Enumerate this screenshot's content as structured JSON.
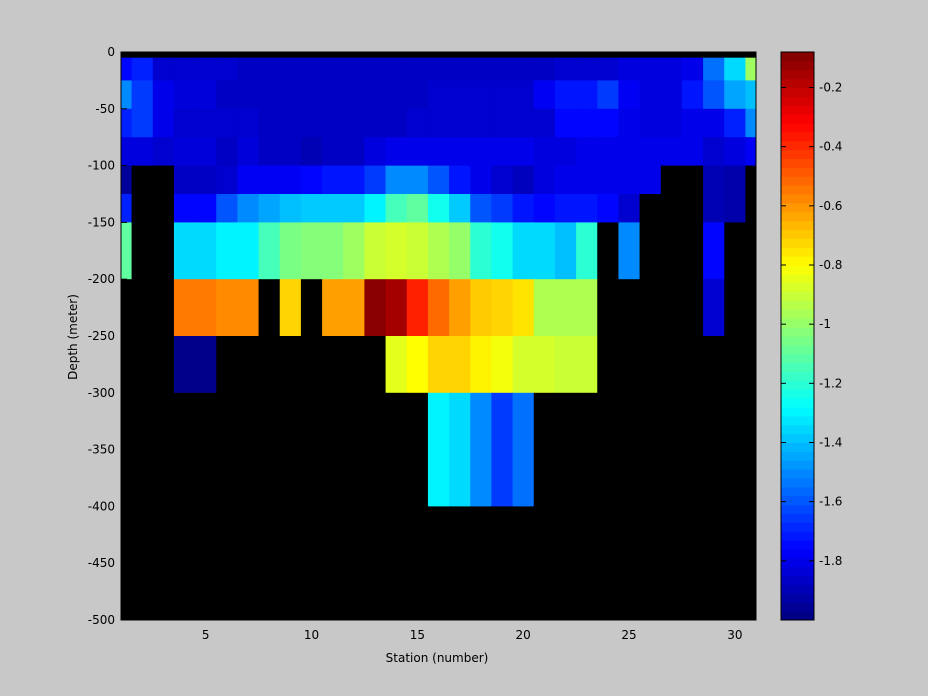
{
  "chart_data": {
    "type": "heatmap",
    "title": "",
    "xlabel": "Station (number)",
    "ylabel": "Depth (meter)",
    "xlim": [
      1,
      31
    ],
    "ylim": [
      -500,
      0
    ],
    "x_ticks": [
      5,
      10,
      15,
      20,
      25,
      30
    ],
    "y_ticks": [
      0,
      -50,
      -100,
      -150,
      -200,
      -250,
      -300,
      -350,
      -400,
      -450,
      -500
    ],
    "x_tick_labels": [
      "5",
      "10",
      "15",
      "20",
      "25",
      "30"
    ],
    "y_tick_labels": [
      "0",
      "-50",
      "-100",
      "-150",
      "-200",
      "-250",
      "-300",
      "-350",
      "-400",
      "-450",
      "-500"
    ],
    "colorbar": {
      "colormap": "jet",
      "range": [
        -2.0,
        -0.08
      ],
      "ticks": [
        -0.2,
        -0.4,
        -0.6,
        -0.8,
        -1,
        -1.2,
        -1.4,
        -1.6,
        -1.8
      ],
      "tick_labels": [
        "-0.2",
        "-0.4",
        "-0.6",
        "-0.8",
        "-1",
        "-1.2",
        "-1.4",
        "-1.6",
        "-1.8"
      ]
    },
    "missing_color": "#000000",
    "background_color": "#c8c8c8",
    "stations": [
      1,
      2,
      3,
      4,
      5,
      6,
      7,
      8,
      9,
      10,
      11,
      12,
      13,
      14,
      15,
      16,
      17,
      18,
      19,
      20,
      21,
      22,
      23,
      24,
      25,
      26,
      27,
      28,
      29,
      30,
      31
    ],
    "depth_bins": [
      {
        "top": 0,
        "bottom": -5
      },
      {
        "top": -5,
        "bottom": -25
      },
      {
        "top": -25,
        "bottom": -50
      },
      {
        "top": -50,
        "bottom": -75
      },
      {
        "top": -75,
        "bottom": -100
      },
      {
        "top": -100,
        "bottom": -125
      },
      {
        "top": -125,
        "bottom": -150
      },
      {
        "top": -150,
        "bottom": -200
      },
      {
        "top": -200,
        "bottom": -250
      },
      {
        "top": -250,
        "bottom": -300
      },
      {
        "top": -300,
        "bottom": -400
      },
      {
        "top": -400,
        "bottom": -500
      }
    ],
    "values": [
      [
        null,
        null,
        null,
        null,
        null,
        null,
        null,
        null,
        null,
        null,
        null,
        null,
        null,
        null,
        null,
        null,
        null,
        null,
        null,
        null,
        null,
        null,
        null,
        null,
        null,
        null,
        null,
        null,
        null,
        null,
        null
      ],
      [
        -1.75,
        -1.7,
        -1.85,
        -1.85,
        -1.85,
        -1.85,
        -1.87,
        -1.87,
        -1.87,
        -1.87,
        -1.87,
        -1.87,
        -1.87,
        -1.87,
        -1.87,
        -1.87,
        -1.87,
        -1.87,
        -1.87,
        -1.87,
        -1.87,
        -1.85,
        -1.85,
        -1.85,
        -1.82,
        -1.82,
        -1.82,
        -1.8,
        -1.55,
        -1.35,
        -0.98
      ],
      [
        -1.5,
        -1.65,
        -1.8,
        -1.83,
        -1.83,
        -1.87,
        -1.87,
        -1.87,
        -1.87,
        -1.87,
        -1.87,
        -1.87,
        -1.87,
        -1.87,
        -1.87,
        -1.85,
        -1.85,
        -1.85,
        -1.85,
        -1.85,
        -1.78,
        -1.72,
        -1.72,
        -1.65,
        -1.78,
        -1.82,
        -1.82,
        -1.72,
        -1.6,
        -1.45,
        -1.4
      ],
      [
        -1.7,
        -1.65,
        -1.8,
        -1.85,
        -1.85,
        -1.85,
        -1.85,
        -1.87,
        -1.87,
        -1.87,
        -1.87,
        -1.87,
        -1.87,
        -1.87,
        -1.85,
        -1.85,
        -1.85,
        -1.85,
        -1.85,
        -1.85,
        -1.85,
        -1.75,
        -1.75,
        -1.75,
        -1.8,
        -1.82,
        -1.82,
        -1.8,
        -1.8,
        -1.7,
        -1.5
      ],
      [
        -1.82,
        -1.82,
        -1.85,
        -1.83,
        -1.83,
        -1.87,
        -1.83,
        -1.87,
        -1.87,
        -1.9,
        -1.87,
        -1.87,
        -1.82,
        -1.8,
        -1.8,
        -1.8,
        -1.8,
        -1.8,
        -1.8,
        -1.8,
        -1.82,
        -1.82,
        -1.8,
        -1.8,
        -1.8,
        -1.8,
        -1.8,
        -1.8,
        -1.85,
        -1.82,
        -1.78
      ],
      [
        -1.95,
        null,
        null,
        -1.87,
        -1.87,
        -1.85,
        -1.78,
        -1.78,
        -1.78,
        -1.75,
        -1.72,
        -1.72,
        -1.65,
        -1.5,
        -1.5,
        -1.6,
        -1.72,
        -1.8,
        -1.85,
        -1.88,
        -1.82,
        -1.8,
        -1.8,
        -1.8,
        -1.8,
        -1.8,
        null,
        null,
        -1.9,
        -1.92,
        null
      ],
      [
        -1.7,
        null,
        null,
        -1.75,
        -1.75,
        -1.6,
        -1.5,
        -1.45,
        -1.4,
        -1.38,
        -1.38,
        -1.38,
        -1.3,
        -1.15,
        -1.1,
        -1.25,
        -1.38,
        -1.6,
        -1.65,
        -1.72,
        -1.75,
        -1.72,
        -1.72,
        -1.75,
        -1.85,
        null,
        null,
        null,
        -1.9,
        -1.92,
        null
      ],
      [
        -1.1,
        null,
        null,
        -1.35,
        -1.35,
        -1.3,
        -1.3,
        -1.15,
        -1.05,
        -1.03,
        -1.03,
        -0.98,
        -0.9,
        -0.88,
        -0.9,
        -0.95,
        -1.0,
        -1.2,
        -1.25,
        -1.35,
        -1.35,
        -1.4,
        -1.2,
        null,
        -1.5,
        null,
        null,
        null,
        -1.75,
        null,
        null
      ],
      [
        null,
        null,
        null,
        -0.55,
        -0.55,
        -0.58,
        -0.58,
        null,
        -0.72,
        null,
        -0.62,
        -0.62,
        -0.1,
        -0.15,
        -0.38,
        -0.52,
        -0.62,
        -0.7,
        -0.72,
        -0.75,
        -0.95,
        -0.95,
        -0.95,
        null,
        null,
        null,
        null,
        null,
        -1.85,
        null,
        null
      ],
      [
        null,
        null,
        null,
        -1.98,
        -1.98,
        null,
        null,
        null,
        null,
        null,
        null,
        null,
        null,
        -0.85,
        -0.8,
        -0.72,
        -0.72,
        -0.78,
        -0.82,
        -0.88,
        -0.88,
        -0.9,
        -0.9,
        null,
        null,
        null,
        null,
        null,
        null,
        null,
        null
      ],
      [
        null,
        null,
        null,
        null,
        null,
        null,
        null,
        null,
        null,
        null,
        null,
        null,
        null,
        null,
        null,
        -1.3,
        -1.35,
        -1.5,
        -1.65,
        -1.55,
        null,
        null,
        null,
        null,
        null,
        null,
        null,
        null,
        null,
        null,
        null
      ],
      [
        null,
        null,
        null,
        null,
        null,
        null,
        null,
        null,
        null,
        null,
        null,
        null,
        null,
        null,
        null,
        null,
        null,
        null,
        null,
        null,
        null,
        null,
        null,
        null,
        null,
        null,
        null,
        null,
        null,
        null,
        null
      ]
    ]
  }
}
